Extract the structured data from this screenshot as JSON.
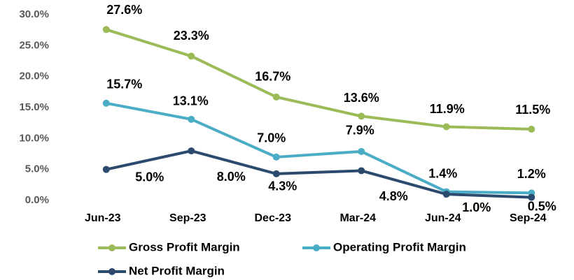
{
  "chart_data": {
    "type": "line",
    "categories": [
      "Jun-23",
      "Sep-23",
      "Dec-23",
      "Mar-24",
      "Jun-24",
      "Sep-24"
    ],
    "series": [
      {
        "name": "Gross Profit Margin",
        "color": "#9bbb59",
        "values": [
          27.6,
          23.3,
          16.7,
          13.6,
          11.9,
          11.5
        ],
        "value_labels": [
          "27.6%",
          "23.3%",
          "16.7%",
          "13.6%",
          "11.9%",
          "11.5%"
        ]
      },
      {
        "name": "Operating Profit Margin",
        "color": "#4bacc6",
        "values": [
          15.7,
          13.1,
          7.0,
          7.9,
          1.4,
          1.2
        ],
        "value_labels": [
          "15.7%",
          "13.1%",
          "7.0%",
          "7.9%",
          "1.4%",
          "1.2%"
        ]
      },
      {
        "name": "Net Profit Margin",
        "color": "#2c4a6e",
        "values": [
          5.0,
          8.0,
          4.3,
          4.8,
          1.0,
          0.5
        ],
        "value_labels": [
          "5.0%",
          "8.0%",
          "4.3%",
          "4.8%",
          "1.0%",
          "0.5%"
        ]
      }
    ],
    "ylim": [
      0,
      30
    ],
    "yticks": [
      {
        "value": 0,
        "label": "0.0%"
      },
      {
        "value": 5,
        "label": "5.0%"
      },
      {
        "value": 10,
        "label": "10.0%"
      },
      {
        "value": 15,
        "label": "15.0%"
      },
      {
        "value": 20,
        "label": "20.0%"
      },
      {
        "value": 25,
        "label": "25.0%"
      },
      {
        "value": 30,
        "label": "30.0%"
      }
    ],
    "grid": false
  }
}
